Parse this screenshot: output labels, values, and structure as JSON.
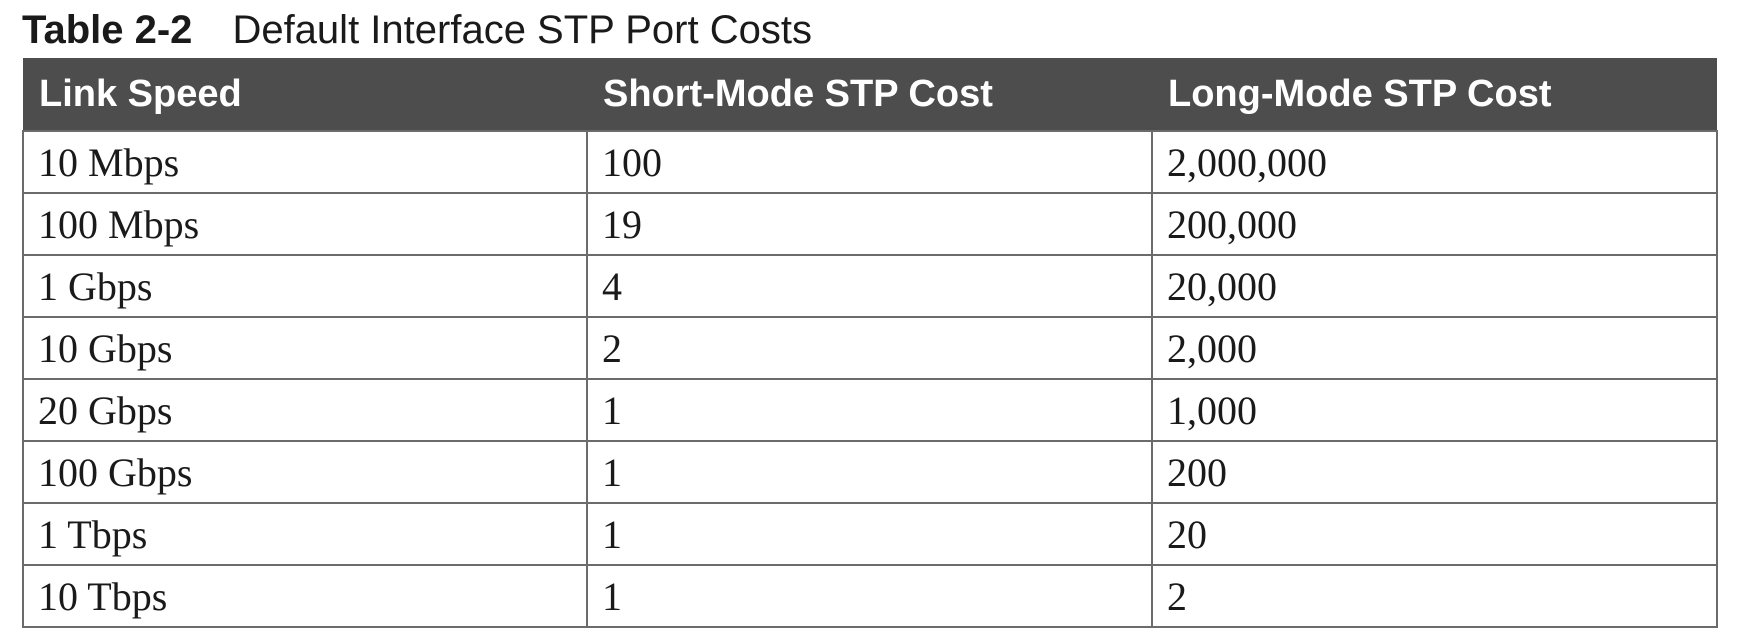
{
  "caption": {
    "label": "Table 2-2",
    "title": "Default Interface STP Port Costs"
  },
  "table": {
    "headers": [
      "Link Speed",
      "Short-Mode STP Cost",
      "Long-Mode STP Cost"
    ],
    "rows": [
      [
        "10 Mbps",
        "100",
        "2,000,000"
      ],
      [
        "100 Mbps",
        "19",
        "200,000"
      ],
      [
        "1 Gbps",
        "4",
        "20,000"
      ],
      [
        "10 Gbps",
        "2",
        "2,000"
      ],
      [
        "20 Gbps",
        "1",
        "1,000"
      ],
      [
        "100 Gbps",
        "1",
        "200"
      ],
      [
        "1 Tbps",
        "1",
        "20"
      ],
      [
        "10 Tbps",
        "1",
        "2"
      ]
    ]
  },
  "colors": {
    "header_background": "#4d4d4d",
    "header_text": "#ffffff",
    "border": "#6b6b6b",
    "text": "#1a1a1a"
  }
}
